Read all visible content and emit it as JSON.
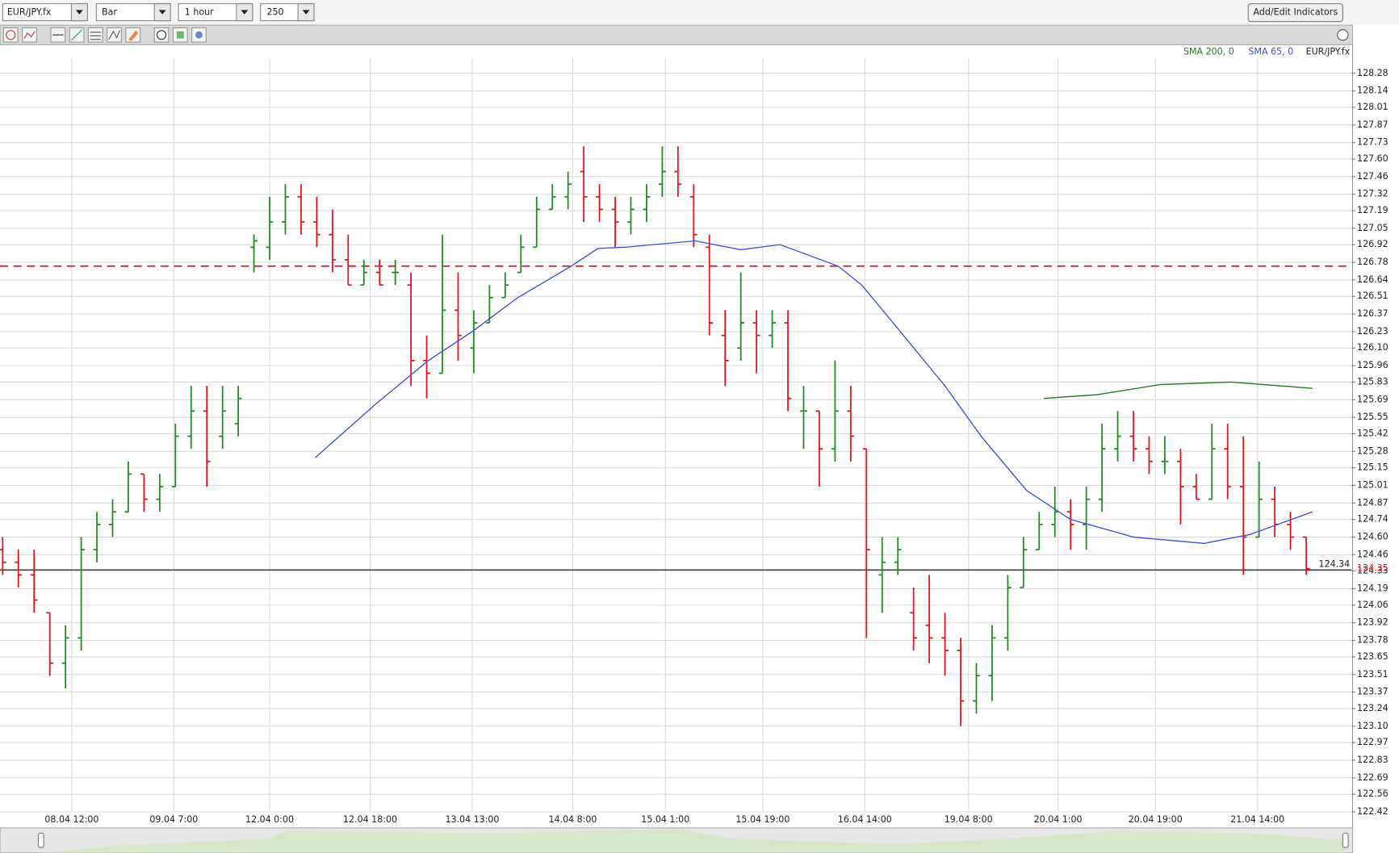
{
  "toolbar": {
    "symbol": "EUR/JPY.fx",
    "chart_type": "Bar",
    "interval": "1 hour",
    "bar_count": "250",
    "button": "Add/Edit Indicators"
  },
  "chart_data": {
    "type": "ohlc",
    "symbol": "EUR/JPY.fx",
    "up_color": "#1f8a1f",
    "down_color": "#e8101c",
    "bars": [
      [
        124.5,
        124.6,
        124.3,
        124.4
      ],
      [
        124.4,
        124.5,
        124.2,
        124.3
      ],
      [
        124.3,
        124.5,
        124.0,
        124.1
      ],
      [
        124.0,
        124.0,
        123.5,
        123.6
      ],
      [
        123.6,
        123.9,
        123.4,
        123.8
      ],
      [
        123.8,
        124.6,
        123.7,
        124.5
      ],
      [
        124.5,
        124.8,
        124.4,
        124.7
      ],
      [
        124.7,
        124.9,
        124.6,
        124.8
      ],
      [
        124.8,
        125.2,
        124.8,
        125.1
      ],
      [
        125.1,
        125.1,
        124.8,
        124.9
      ],
      [
        124.9,
        125.1,
        124.8,
        125.0
      ],
      [
        125.0,
        125.5,
        125.0,
        125.4
      ],
      [
        125.4,
        125.8,
        125.3,
        125.6
      ],
      [
        125.6,
        125.8,
        125.0,
        125.2
      ],
      [
        125.4,
        125.8,
        125.3,
        125.6
      ],
      [
        125.5,
        125.8,
        125.4,
        125.7
      ],
      [
        126.9,
        127.0,
        126.7,
        126.95
      ],
      [
        126.9,
        127.3,
        126.8,
        127.1
      ],
      [
        127.1,
        127.4,
        127.0,
        127.3
      ],
      [
        127.3,
        127.4,
        127.0,
        127.1
      ],
      [
        127.1,
        127.3,
        126.9,
        127.0
      ],
      [
        127.0,
        127.2,
        126.7,
        126.8
      ],
      [
        126.8,
        127.0,
        126.6,
        126.6
      ],
      [
        126.6,
        126.8,
        126.6,
        126.7
      ],
      [
        126.7,
        126.8,
        126.6,
        126.6
      ],
      [
        126.7,
        126.8,
        126.6,
        126.7
      ],
      [
        126.6,
        126.7,
        125.8,
        126.0
      ],
      [
        126.0,
        126.2,
        125.7,
        125.9
      ],
      [
        125.9,
        127.0,
        125.9,
        126.4
      ],
      [
        126.4,
        126.7,
        126.0,
        126.2
      ],
      [
        126.1,
        126.4,
        125.9,
        126.3
      ],
      [
        126.3,
        126.6,
        126.3,
        126.5
      ],
      [
        126.5,
        126.7,
        126.5,
        126.6
      ],
      [
        126.7,
        127.0,
        126.7,
        126.9
      ],
      [
        126.9,
        127.3,
        126.9,
        127.2
      ],
      [
        127.2,
        127.4,
        127.2,
        127.3
      ],
      [
        127.3,
        127.5,
        127.2,
        127.4
      ],
      [
        127.5,
        127.7,
        127.1,
        127.3
      ],
      [
        127.3,
        127.4,
        127.1,
        127.2
      ],
      [
        127.2,
        127.3,
        126.9,
        127.1
      ],
      [
        127.1,
        127.3,
        127.0,
        127.2
      ],
      [
        127.2,
        127.4,
        127.1,
        127.3
      ],
      [
        127.4,
        127.7,
        127.3,
        127.5
      ],
      [
        127.5,
        127.7,
        127.3,
        127.4
      ],
      [
        127.3,
        127.4,
        126.9,
        127.0
      ],
      [
        126.9,
        127.0,
        126.2,
        126.3
      ],
      [
        126.2,
        126.4,
        125.8,
        126.0
      ],
      [
        126.1,
        126.7,
        126.0,
        126.3
      ],
      [
        126.3,
        126.4,
        125.9,
        126.2
      ],
      [
        126.2,
        126.4,
        126.1,
        126.3
      ],
      [
        126.3,
        126.4,
        125.6,
        125.7
      ],
      [
        125.6,
        125.8,
        125.3,
        125.6
      ],
      [
        125.6,
        125.6,
        125.0,
        125.3
      ],
      [
        125.3,
        126.0,
        125.2,
        125.6
      ],
      [
        125.6,
        125.8,
        125.2,
        125.4
      ],
      [
        125.3,
        125.3,
        123.8,
        124.5
      ],
      [
        124.3,
        124.6,
        124.0,
        124.4
      ],
      [
        124.4,
        124.6,
        124.3,
        124.5
      ],
      [
        124.0,
        124.2,
        123.7,
        123.8
      ],
      [
        123.9,
        124.3,
        123.6,
        123.8
      ],
      [
        123.8,
        124.0,
        123.5,
        123.7
      ],
      [
        123.7,
        123.8,
        123.1,
        123.3
      ],
      [
        123.3,
        123.6,
        123.2,
        123.5
      ],
      [
        123.5,
        123.9,
        123.3,
        123.8
      ],
      [
        123.8,
        124.3,
        123.7,
        124.2
      ],
      [
        124.2,
        124.6,
        124.2,
        124.5
      ],
      [
        124.5,
        124.8,
        124.5,
        124.7
      ],
      [
        124.7,
        125.0,
        124.6,
        124.8
      ],
      [
        124.8,
        124.9,
        124.5,
        124.7
      ],
      [
        124.7,
        125.0,
        124.5,
        124.9
      ],
      [
        124.9,
        125.5,
        124.8,
        125.3
      ],
      [
        125.3,
        125.6,
        125.2,
        125.4
      ],
      [
        125.4,
        125.6,
        125.2,
        125.3
      ],
      [
        125.3,
        125.4,
        125.1,
        125.2
      ],
      [
        125.2,
        125.4,
        125.1,
        125.2
      ],
      [
        125.2,
        125.3,
        124.7,
        125.0
      ],
      [
        125.0,
        125.1,
        124.9,
        124.9
      ],
      [
        124.9,
        125.5,
        124.9,
        125.3
      ],
      [
        125.3,
        125.5,
        124.9,
        125.0
      ],
      [
        125.0,
        125.4,
        124.3,
        124.6
      ],
      [
        124.6,
        125.2,
        124.6,
        124.9
      ],
      [
        124.9,
        125.0,
        124.6,
        124.7
      ],
      [
        124.7,
        124.8,
        124.5,
        124.6
      ],
      [
        124.6,
        124.6,
        124.3,
        124.35
      ]
    ],
    "series": [
      {
        "name": "SMA 200, 0",
        "color": "#1f7a1f",
        "x": [
          66.3,
          69.7,
          73.7,
          78.2,
          83.4
        ],
        "values": [
          125.7,
          125.73,
          125.81,
          125.83,
          125.78
        ]
      },
      {
        "name": "SMA 65, 0",
        "color": "#3a4fd8",
        "x": [
          19.9,
          23.7,
          27.1,
          29.9,
          32.8,
          36.2,
          37.9,
          39.6,
          44.1,
          47.0,
          49.5,
          53.2,
          54.7,
          56.7,
          60.0,
          62.3,
          65.2,
          68.0,
          72.0,
          76.5,
          79.4,
          83.4
        ],
        "values": [
          125.23,
          125.65,
          126.0,
          126.23,
          126.5,
          126.75,
          126.89,
          126.9,
          126.95,
          126.88,
          126.92,
          126.75,
          126.6,
          126.3,
          125.8,
          125.4,
          124.97,
          124.74,
          124.6,
          124.55,
          124.62,
          124.8
        ]
      }
    ],
    "hlines": [
      {
        "value": 126.75,
        "color": "#e8101c",
        "dashed": true
      },
      {
        "value": 124.34,
        "color": "#000000",
        "dashed": false
      }
    ],
    "last_price": 124.35,
    "xlim": [
      -0.17,
      85.9
    ],
    "xticks": [
      {
        "value": 4.4,
        "label": "08.04 12:00"
      },
      {
        "value": 10.9,
        "label": "09.04 7:00"
      },
      {
        "value": 17.0,
        "label": "12.04 0:00"
      },
      {
        "value": 23.4,
        "label": "12.04 18:00"
      },
      {
        "value": 29.9,
        "label": "13.04 13:00"
      },
      {
        "value": 36.3,
        "label": "14.04 8:00"
      },
      {
        "value": 42.2,
        "label": "15.04 1:00"
      },
      {
        "value": 48.4,
        "label": "15.04 19:00"
      },
      {
        "value": 54.9,
        "label": "16.04 14:00"
      },
      {
        "value": 61.5,
        "label": "19.04 8:00"
      },
      {
        "value": 67.2,
        "label": "20.04 1:00"
      },
      {
        "value": 73.4,
        "label": "20.04 19:00"
      },
      {
        "value": 79.9,
        "label": "21.04 14:00"
      }
    ],
    "ylim": [
      122.3,
      128.4
    ],
    "yticks": [
      128.28,
      128.14,
      128.01,
      127.87,
      127.73,
      {
        "value": 127.6,
        "label": "127.60"
      },
      127.46,
      127.32,
      127.19,
      127.05,
      126.92,
      126.78,
      126.64,
      126.51,
      126.37,
      126.23,
      {
        "value": 126.1,
        "label": "126.10"
      },
      125.96,
      125.83,
      125.69,
      125.55,
      125.42,
      125.28,
      125.15,
      125.01,
      124.87,
      124.74,
      {
        "value": 124.6,
        "label": "124.60"
      },
      124.46,
      124.33,
      124.19,
      124.06,
      123.92,
      123.78,
      123.65,
      123.51,
      123.37,
      123.24,
      {
        "value": 123.1,
        "label": "123.10"
      },
      122.97,
      122.83,
      122.69,
      122.56,
      122.42
    ],
    "grid": true
  }
}
